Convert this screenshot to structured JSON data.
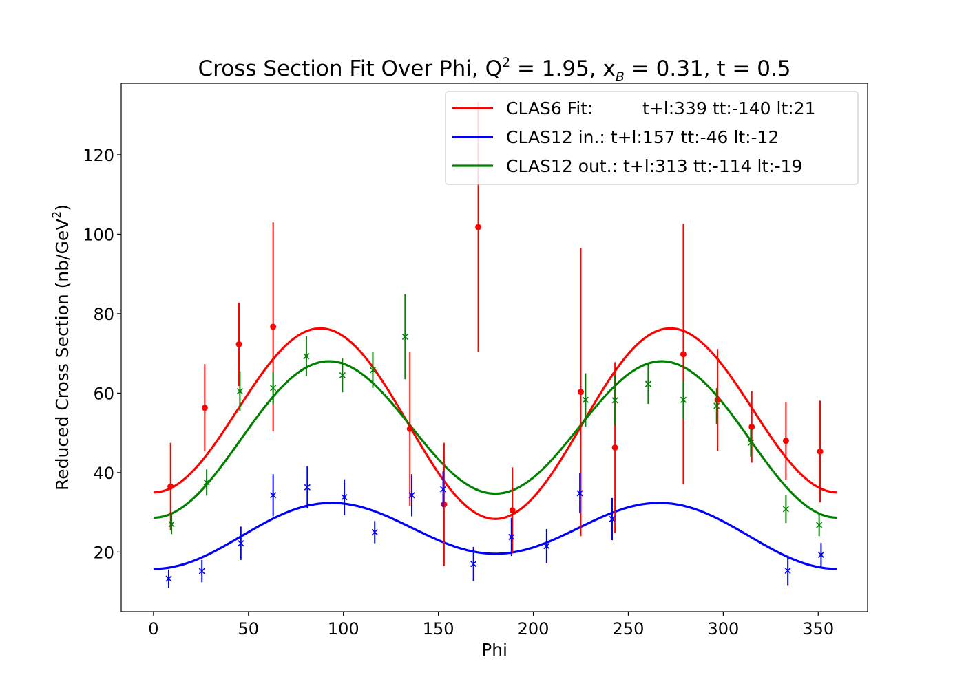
{
  "chart_data": {
    "type": "scatter",
    "title": {
      "prefix": "Cross Section Fit Over Phi, Q",
      "q_sup": "2",
      "mid1": " = 1.95, x",
      "xb_sub": "B",
      "mid2": " = 0.31, t = 0.5"
    },
    "xlabel": "Phi",
    "ylabel": {
      "main": "Reduced Cross Section (nb/GeV",
      "sup": "2",
      "close": ")"
    },
    "xlim": [
      -17,
      376
    ],
    "ylim": [
      5,
      138
    ],
    "xticks": [
      0,
      50,
      100,
      150,
      200,
      250,
      300,
      350
    ],
    "yticks": [
      20,
      40,
      60,
      80,
      100,
      120
    ],
    "grid": false,
    "legend_position": "upper-right",
    "series": [
      {
        "name": "CLAS6 Fit:         t+l:339 tt:-140 lt:21",
        "color": "#ff0000",
        "marker": "circle",
        "fit": {
          "A": 339,
          "B": -140,
          "C": 21
        },
        "points": [
          {
            "x": 9,
            "y": 36.5,
            "err": 11
          },
          {
            "x": 27,
            "y": 56.3,
            "err": 11
          },
          {
            "x": 45,
            "y": 72.3,
            "err": 10.5
          },
          {
            "x": 63,
            "y": 76.7,
            "err": 26.3
          },
          {
            "x": 135,
            "y": 51,
            "err": 19.3
          },
          {
            "x": 153,
            "y": 32,
            "err": 15.5
          },
          {
            "x": 171,
            "y": 101.8,
            "err": 31.5
          },
          {
            "x": 189,
            "y": 30.5,
            "err": 10.8
          },
          {
            "x": 225,
            "y": 60.3,
            "err": 36.3
          },
          {
            "x": 243,
            "y": 46.3,
            "err": 21.5
          },
          {
            "x": 279,
            "y": 69.8,
            "err": 32.8
          },
          {
            "x": 297,
            "y": 58.3,
            "err": 12.8
          },
          {
            "x": 315,
            "y": 51.5,
            "err": 9
          },
          {
            "x": 333,
            "y": 48,
            "err": 9.8
          },
          {
            "x": 351,
            "y": 45.3,
            "err": 12.8
          }
        ]
      },
      {
        "name": "CLAS12 in.: t+l:157 tt:-46 lt:-12",
        "color": "#0000ff",
        "marker": "x",
        "fit": {
          "A": 157,
          "B": -46,
          "C": -12
        },
        "points": [
          {
            "x": 8,
            "y": 13.3,
            "err": 2.3
          },
          {
            "x": 25.5,
            "y": 15.2,
            "err": 2.8
          },
          {
            "x": 46,
            "y": 22.2,
            "err": 4.2
          },
          {
            "x": 63,
            "y": 34.3,
            "err": 5.3
          },
          {
            "x": 81,
            "y": 36.3,
            "err": 5.3
          },
          {
            "x": 100.5,
            "y": 33.8,
            "err": 4.5
          },
          {
            "x": 116.5,
            "y": 25,
            "err": 2.8
          },
          {
            "x": 136,
            "y": 34.3,
            "err": 5.3
          },
          {
            "x": 152.5,
            "y": 35.8,
            "err": 4.5
          },
          {
            "x": 168.5,
            "y": 17,
            "err": 4.3
          },
          {
            "x": 188.5,
            "y": 23.8,
            "err": 4.8
          },
          {
            "x": 207,
            "y": 21.5,
            "err": 4.3
          },
          {
            "x": 224.5,
            "y": 34.8,
            "err": 5
          },
          {
            "x": 241.5,
            "y": 28.3,
            "err": 5.3
          },
          {
            "x": 334,
            "y": 15.3,
            "err": 3.8
          },
          {
            "x": 351.5,
            "y": 19.3,
            "err": 3
          }
        ]
      },
      {
        "name": "CLAS12 out.: t+l:313 tt:-114 lt:-19",
        "color": "#008000",
        "marker": "x",
        "fit": {
          "A": 313,
          "B": -114,
          "C": -19
        },
        "points": [
          {
            "x": 9.5,
            "y": 27,
            "err": 2.5
          },
          {
            "x": 28,
            "y": 37.5,
            "err": 3.3
          },
          {
            "x": 45.5,
            "y": 60.5,
            "err": 5
          },
          {
            "x": 63,
            "y": 61.3,
            "err": 4
          },
          {
            "x": 80.5,
            "y": 69.3,
            "err": 5
          },
          {
            "x": 99.5,
            "y": 64.5,
            "err": 4.3
          },
          {
            "x": 115.5,
            "y": 65.8,
            "err": 4.5
          },
          {
            "x": 132.5,
            "y": 74.2,
            "err": 10.7
          },
          {
            "x": 227.5,
            "y": 58.3,
            "err": 6.7
          },
          {
            "x": 243,
            "y": 58.2,
            "err": 6.3
          },
          {
            "x": 260.5,
            "y": 62.3,
            "err": 5
          },
          {
            "x": 279,
            "y": 58.3,
            "err": 4.8
          },
          {
            "x": 296.5,
            "y": 56.8,
            "err": 4.5
          },
          {
            "x": 314.5,
            "y": 47.5,
            "err": 3.5
          },
          {
            "x": 333,
            "y": 30.8,
            "err": 3.5
          },
          {
            "x": 350.5,
            "y": 26.8,
            "err": 2.8
          }
        ]
      }
    ]
  }
}
